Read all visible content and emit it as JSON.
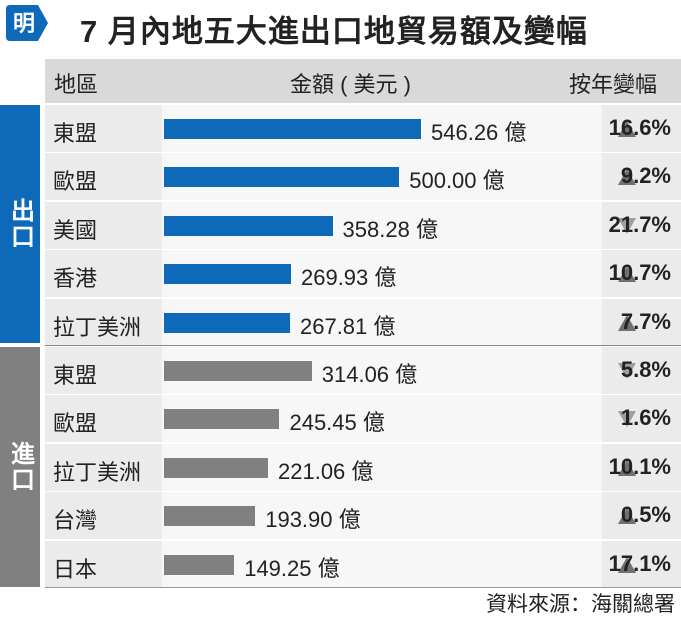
{
  "header": {
    "logo_text": "明",
    "title": "7 月內地五大進出口地貿易額及變幅"
  },
  "columns": {
    "region": "地區",
    "amount": "金額 ( 美元 )",
    "change": "按年變幅"
  },
  "groups": {
    "export": "出口",
    "import": "進口"
  },
  "colors": {
    "export_bar": "#0e6ab8",
    "import_bar": "#808080",
    "logo_bg": "#0e6ab8",
    "triangle": "#707070",
    "triangle_light": "#a0a0a0"
  },
  "source": "資料來源：海關總署",
  "chart_data": {
    "type": "bar",
    "orientation": "horizontal",
    "title": "7 月內地五大進出口地貿易額及變幅",
    "unit": "億",
    "groups": [
      {
        "name": "出口",
        "rows": [
          {
            "region": "東盟",
            "value": 546.26,
            "label": "546.26 億",
            "change": "16.6%",
            "direction": "up"
          },
          {
            "region": "歐盟",
            "value": 500.0,
            "label": "500.00 億",
            "change": "9.2%",
            "direction": "up"
          },
          {
            "region": "美國",
            "value": 358.28,
            "label": "358.28 億",
            "change": "21.7%",
            "direction": "down"
          },
          {
            "region": "香港",
            "value": 269.93,
            "label": "269.93 億",
            "change": "10.7%",
            "direction": "up"
          },
          {
            "region": "拉丁美洲",
            "value": 267.81,
            "label": "267.81 億",
            "change": "7.7%",
            "direction": "up"
          }
        ]
      },
      {
        "name": "進口",
        "rows": [
          {
            "region": "東盟",
            "value": 314.06,
            "label": "314.06 億",
            "change": "5.8%",
            "direction": "down"
          },
          {
            "region": "歐盟",
            "value": 245.45,
            "label": "245.45 億",
            "change": "1.6%",
            "direction": "down"
          },
          {
            "region": "拉丁美洲",
            "value": 221.06,
            "label": "221.06 億",
            "change": "10.1%",
            "direction": "up"
          },
          {
            "region": "台灣",
            "value": 193.9,
            "label": "193.90 億",
            "change": "0.5%",
            "direction": "up"
          },
          {
            "region": "日本",
            "value": 149.25,
            "label": "149.25 億",
            "change": "17.1%",
            "direction": "up"
          }
        ]
      }
    ]
  }
}
